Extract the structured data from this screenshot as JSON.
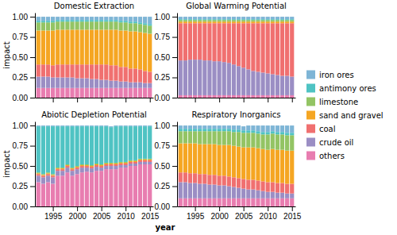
{
  "chart_data": [
    {
      "type": "bar",
      "stacked": true,
      "grid": false,
      "legend": "right",
      "tick_labels": "y",
      "title": "Domestic Extraction",
      "y_label": "impact",
      "x": [
        1992,
        1993,
        1994,
        1995,
        1996,
        1997,
        1998,
        1999,
        2000,
        2001,
        2002,
        2003,
        2004,
        2005,
        2006,
        2007,
        2008,
        2009,
        2010,
        2011,
        2012,
        2013,
        2014,
        2015
      ],
      "xlim": [
        1991.3,
        2015.7
      ],
      "xticks": [
        1995,
        2000,
        2005,
        2010,
        2015
      ],
      "ylim": [
        0,
        1.05
      ],
      "yticks": [
        {
          "value": 0,
          "label": "0.00"
        },
        {
          "value": 0.25,
          "label": "0.25"
        },
        {
          "value": 0.5,
          "label": "0.50"
        },
        {
          "value": 0.75,
          "label": "0.75"
        },
        {
          "value": 1,
          "label": "1.00"
        }
      ],
      "series": [
        {
          "name": "others",
          "color": "#E87DB0",
          "values": [
            0.12,
            0.12,
            0.12,
            0.12,
            0.12,
            0.12,
            0.12,
            0.12,
            0.12,
            0.12,
            0.12,
            0.12,
            0.12,
            0.12,
            0.12,
            0.12,
            0.12,
            0.12,
            0.12,
            0.12,
            0.12,
            0.12,
            0.12,
            0.12
          ]
        },
        {
          "name": "crude oil",
          "color": "#9B8EC4",
          "values": [
            0.14,
            0.14,
            0.14,
            0.13,
            0.13,
            0.13,
            0.13,
            0.13,
            0.12,
            0.12,
            0.12,
            0.11,
            0.11,
            0.1,
            0.1,
            0.09,
            0.09,
            0.08,
            0.08,
            0.07,
            0.07,
            0.07,
            0.06,
            0.06
          ]
        },
        {
          "name": "coal",
          "color": "#F07070",
          "values": [
            0.15,
            0.15,
            0.15,
            0.15,
            0.16,
            0.16,
            0.16,
            0.16,
            0.17,
            0.17,
            0.17,
            0.18,
            0.18,
            0.19,
            0.19,
            0.19,
            0.19,
            0.18,
            0.18,
            0.17,
            0.17,
            0.16,
            0.15,
            0.14
          ]
        },
        {
          "name": "sand and gravel",
          "color": "#F5A623",
          "values": [
            0.42,
            0.42,
            0.42,
            0.43,
            0.43,
            0.43,
            0.43,
            0.43,
            0.43,
            0.43,
            0.43,
            0.43,
            0.43,
            0.43,
            0.43,
            0.44,
            0.44,
            0.45,
            0.45,
            0.46,
            0.46,
            0.46,
            0.47,
            0.47
          ]
        },
        {
          "name": "limestone",
          "color": "#93C464",
          "values": [
            0.1,
            0.1,
            0.1,
            0.1,
            0.1,
            0.1,
            0.1,
            0.1,
            0.1,
            0.1,
            0.1,
            0.1,
            0.1,
            0.1,
            0.1,
            0.1,
            0.1,
            0.1,
            0.1,
            0.1,
            0.1,
            0.1,
            0.1,
            0.1
          ]
        },
        {
          "name": "antimony ores",
          "color": "#4FC3C3",
          "values": [
            0.02,
            0.02,
            0.02,
            0.02,
            0.02,
            0.02,
            0.02,
            0.02,
            0.02,
            0.02,
            0.02,
            0.02,
            0.02,
            0.02,
            0.02,
            0.02,
            0.02,
            0.02,
            0.02,
            0.02,
            0.02,
            0.02,
            0.02,
            0.02
          ]
        },
        {
          "name": "iron ores",
          "color": "#7EB5D6",
          "values": [
            0.05,
            0.05,
            0.05,
            0.05,
            0.04,
            0.04,
            0.04,
            0.04,
            0.04,
            0.04,
            0.04,
            0.04,
            0.04,
            0.04,
            0.04,
            0.04,
            0.04,
            0.05,
            0.05,
            0.06,
            0.06,
            0.07,
            0.08,
            0.09
          ]
        }
      ]
    },
    {
      "type": "bar",
      "stacked": true,
      "grid": false,
      "tick_labels": "y",
      "title": "Global Warming Potential",
      "x": [
        1992,
        1993,
        1994,
        1995,
        1996,
        1997,
        1998,
        1999,
        2000,
        2001,
        2002,
        2003,
        2004,
        2005,
        2006,
        2007,
        2008,
        2009,
        2010,
        2011,
        2012,
        2013,
        2014,
        2015
      ],
      "xlim": [
        1991.3,
        2015.7
      ],
      "xticks": [
        1995,
        2000,
        2005,
        2010,
        2015
      ],
      "ylim": [
        0,
        1.05
      ],
      "yticks": [
        {
          "value": 0,
          "label": "0.00"
        },
        {
          "value": 0.25,
          "label": "0.25"
        },
        {
          "value": 0.5,
          "label": "0.50"
        },
        {
          "value": 0.75,
          "label": "0.75"
        },
        {
          "value": 1,
          "label": "1.00"
        }
      ],
      "series": [
        {
          "name": "others",
          "color": "#E87DB0",
          "values": [
            0.03,
            0.03,
            0.03,
            0.03,
            0.03,
            0.03,
            0.03,
            0.03,
            0.03,
            0.03,
            0.03,
            0.03,
            0.03,
            0.03,
            0.03,
            0.03,
            0.03,
            0.03,
            0.03,
            0.03,
            0.03,
            0.03,
            0.03,
            0.03
          ]
        },
        {
          "name": "crude oil",
          "color": "#9B8EC4",
          "values": [
            0.43,
            0.43,
            0.44,
            0.44,
            0.44,
            0.43,
            0.43,
            0.42,
            0.42,
            0.41,
            0.4,
            0.38,
            0.36,
            0.34,
            0.32,
            0.3,
            0.29,
            0.28,
            0.27,
            0.26,
            0.25,
            0.24,
            0.24,
            0.23
          ]
        },
        {
          "name": "coal",
          "color": "#F07070",
          "values": [
            0.46,
            0.46,
            0.45,
            0.45,
            0.45,
            0.46,
            0.46,
            0.47,
            0.47,
            0.48,
            0.49,
            0.51,
            0.53,
            0.55,
            0.57,
            0.59,
            0.6,
            0.61,
            0.62,
            0.63,
            0.64,
            0.65,
            0.65,
            0.66
          ]
        },
        {
          "name": "sand and gravel",
          "color": "#F5A623",
          "values": [
            0.02,
            0.02,
            0.02,
            0.02,
            0.02,
            0.02,
            0.02,
            0.02,
            0.02,
            0.02,
            0.02,
            0.02,
            0.02,
            0.02,
            0.02,
            0.02,
            0.02,
            0.02,
            0.02,
            0.02,
            0.02,
            0.02,
            0.02,
            0.02
          ]
        },
        {
          "name": "limestone",
          "color": "#93C464",
          "values": [
            0.02,
            0.02,
            0.02,
            0.02,
            0.02,
            0.02,
            0.02,
            0.02,
            0.02,
            0.02,
            0.02,
            0.02,
            0.02,
            0.02,
            0.02,
            0.02,
            0.02,
            0.02,
            0.02,
            0.02,
            0.02,
            0.02,
            0.02,
            0.02
          ]
        },
        {
          "name": "antimony ores",
          "color": "#4FC3C3",
          "values": [
            0.01,
            0.01,
            0.01,
            0.01,
            0.01,
            0.01,
            0.01,
            0.01,
            0.01,
            0.01,
            0.01,
            0.01,
            0.01,
            0.01,
            0.01,
            0.01,
            0.01,
            0.01,
            0.01,
            0.01,
            0.01,
            0.01,
            0.01,
            0.01
          ]
        },
        {
          "name": "iron ores",
          "color": "#7EB5D6",
          "values": [
            0.03,
            0.03,
            0.03,
            0.03,
            0.03,
            0.03,
            0.03,
            0.03,
            0.03,
            0.03,
            0.03,
            0.03,
            0.03,
            0.03,
            0.03,
            0.03,
            0.03,
            0.03,
            0.03,
            0.03,
            0.03,
            0.03,
            0.03,
            0.03
          ]
        }
      ]
    },
    {
      "type": "bar",
      "stacked": true,
      "grid": false,
      "title": "Abiotic Depletion Potential",
      "y_label": "impact",
      "x_label": "year",
      "x": [
        1992,
        1993,
        1994,
        1995,
        1996,
        1997,
        1998,
        1999,
        2000,
        2001,
        2002,
        2003,
        2004,
        2005,
        2006,
        2007,
        2008,
        2009,
        2010,
        2011,
        2012,
        2013,
        2014,
        2015
      ],
      "xlim": [
        1991.3,
        2015.7
      ],
      "xticks": [
        1995,
        2000,
        2005,
        2010,
        2015
      ],
      "ylim": [
        0,
        1.05
      ],
      "yticks": [
        {
          "value": 0,
          "label": "0.00"
        },
        {
          "value": 0.25,
          "label": "0.25"
        },
        {
          "value": 0.5,
          "label": "0.50"
        },
        {
          "value": 0.75,
          "label": "0.75"
        },
        {
          "value": 1,
          "label": "1.00"
        }
      ],
      "series": [
        {
          "name": "others",
          "color": "#E87DB0",
          "values": [
            0.3,
            0.28,
            0.3,
            0.28,
            0.38,
            0.38,
            0.42,
            0.38,
            0.4,
            0.42,
            0.43,
            0.42,
            0.44,
            0.44,
            0.46,
            0.46,
            0.46,
            0.48,
            0.48,
            0.5,
            0.5,
            0.52,
            0.52,
            0.52
          ]
        },
        {
          "name": "crude oil",
          "color": "#9B8EC4",
          "values": [
            0.08,
            0.08,
            0.08,
            0.08,
            0.06,
            0.06,
            0.06,
            0.06,
            0.06,
            0.06,
            0.05,
            0.05,
            0.05,
            0.04,
            0.04,
            0.04,
            0.04,
            0.03,
            0.03,
            0.03,
            0.03,
            0.03,
            0.03,
            0.03
          ]
        },
        {
          "name": "coal",
          "color": "#F07070",
          "values": [
            0.02,
            0.02,
            0.02,
            0.02,
            0.02,
            0.02,
            0.02,
            0.02,
            0.02,
            0.02,
            0.02,
            0.02,
            0.02,
            0.02,
            0.02,
            0.02,
            0.02,
            0.02,
            0.02,
            0.02,
            0.02,
            0.02,
            0.02,
            0.02
          ]
        },
        {
          "name": "sand and gravel",
          "color": "#F5A623",
          "values": [
            0.01,
            0.01,
            0.01,
            0.01,
            0.01,
            0.01,
            0.01,
            0.01,
            0.01,
            0.01,
            0.01,
            0.01,
            0.01,
            0.01,
            0.01,
            0.01,
            0.01,
            0.01,
            0.01,
            0.01,
            0.01,
            0.01,
            0.01,
            0.01
          ]
        },
        {
          "name": "limestone",
          "color": "#93C464",
          "values": [
            0.01,
            0.01,
            0.01,
            0.01,
            0.01,
            0.01,
            0.01,
            0.01,
            0.01,
            0.01,
            0.01,
            0.01,
            0.01,
            0.01,
            0.01,
            0.01,
            0.01,
            0.01,
            0.01,
            0.01,
            0.01,
            0.01,
            0.01,
            0.01
          ]
        },
        {
          "name": "antimony ores",
          "color": "#4FC3C3",
          "values": [
            0.57,
            0.59,
            0.57,
            0.59,
            0.51,
            0.51,
            0.47,
            0.51,
            0.49,
            0.47,
            0.47,
            0.48,
            0.46,
            0.47,
            0.45,
            0.44,
            0.45,
            0.44,
            0.44,
            0.42,
            0.42,
            0.4,
            0.4,
            0.4
          ]
        },
        {
          "name": "iron ores",
          "color": "#7EB5D6",
          "values": [
            0.01,
            0.01,
            0.01,
            0.01,
            0.01,
            0.01,
            0.01,
            0.01,
            0.01,
            0.01,
            0.01,
            0.01,
            0.01,
            0.01,
            0.01,
            0.01,
            0.01,
            0.01,
            0.01,
            0.01,
            0.01,
            0.01,
            0.01,
            0.01
          ]
        }
      ]
    },
    {
      "type": "bar",
      "stacked": true,
      "grid": false,
      "title": "Respiratory Inorganics",
      "x": [
        1992,
        1993,
        1994,
        1995,
        1996,
        1997,
        1998,
        1999,
        2000,
        2001,
        2002,
        2003,
        2004,
        2005,
        2006,
        2007,
        2008,
        2009,
        2010,
        2011,
        2012,
        2013,
        2014,
        2015
      ],
      "xlim": [
        1991.3,
        2015.7
      ],
      "xticks": [
        1995,
        2000,
        2005,
        2010,
        2015
      ],
      "ylim": [
        0,
        1.05
      ],
      "yticks": [
        {
          "value": 0,
          "label": "0.00"
        },
        {
          "value": 0.25,
          "label": "0.25"
        },
        {
          "value": 0.5,
          "label": "0.50"
        },
        {
          "value": 0.75,
          "label": "0.75"
        },
        {
          "value": 1,
          "label": "1.00"
        }
      ],
      "series": [
        {
          "name": "others",
          "color": "#E87DB0",
          "values": [
            0.1,
            0.1,
            0.1,
            0.1,
            0.1,
            0.1,
            0.1,
            0.1,
            0.1,
            0.1,
            0.1,
            0.1,
            0.1,
            0.1,
            0.1,
            0.1,
            0.1,
            0.1,
            0.1,
            0.1,
            0.1,
            0.1,
            0.1,
            0.1
          ]
        },
        {
          "name": "crude oil",
          "color": "#9B8EC4",
          "values": [
            0.2,
            0.2,
            0.19,
            0.19,
            0.18,
            0.18,
            0.17,
            0.17,
            0.16,
            0.16,
            0.15,
            0.14,
            0.13,
            0.12,
            0.11,
            0.11,
            0.1,
            0.09,
            0.08,
            0.08,
            0.07,
            0.07,
            0.06,
            0.06
          ]
        },
        {
          "name": "coal",
          "color": "#F07070",
          "values": [
            0.12,
            0.12,
            0.12,
            0.12,
            0.12,
            0.12,
            0.12,
            0.12,
            0.12,
            0.12,
            0.12,
            0.12,
            0.12,
            0.12,
            0.12,
            0.12,
            0.12,
            0.12,
            0.12,
            0.12,
            0.12,
            0.12,
            0.12,
            0.12
          ]
        },
        {
          "name": "sand and gravel",
          "color": "#F5A623",
          "values": [
            0.36,
            0.36,
            0.37,
            0.37,
            0.37,
            0.37,
            0.38,
            0.38,
            0.38,
            0.38,
            0.39,
            0.39,
            0.39,
            0.39,
            0.4,
            0.4,
            0.4,
            0.4,
            0.4,
            0.41,
            0.41,
            0.41,
            0.41,
            0.41
          ]
        },
        {
          "name": "limestone",
          "color": "#93C464",
          "values": [
            0.15,
            0.15,
            0.15,
            0.15,
            0.16,
            0.16,
            0.16,
            0.16,
            0.17,
            0.17,
            0.17,
            0.17,
            0.18,
            0.18,
            0.18,
            0.18,
            0.18,
            0.18,
            0.19,
            0.19,
            0.19,
            0.19,
            0.19,
            0.19
          ]
        },
        {
          "name": "antimony ores",
          "color": "#4FC3C3",
          "values": [
            0.03,
            0.03,
            0.03,
            0.03,
            0.03,
            0.03,
            0.03,
            0.03,
            0.03,
            0.03,
            0.03,
            0.03,
            0.03,
            0.03,
            0.03,
            0.03,
            0.03,
            0.03,
            0.03,
            0.03,
            0.03,
            0.03,
            0.03,
            0.03
          ]
        },
        {
          "name": "iron ores",
          "color": "#7EB5D6",
          "values": [
            0.04,
            0.04,
            0.04,
            0.04,
            0.04,
            0.04,
            0.04,
            0.04,
            0.04,
            0.04,
            0.04,
            0.05,
            0.05,
            0.05,
            0.06,
            0.06,
            0.07,
            0.08,
            0.08,
            0.07,
            0.08,
            0.08,
            0.09,
            0.09
          ]
        }
      ]
    }
  ]
}
